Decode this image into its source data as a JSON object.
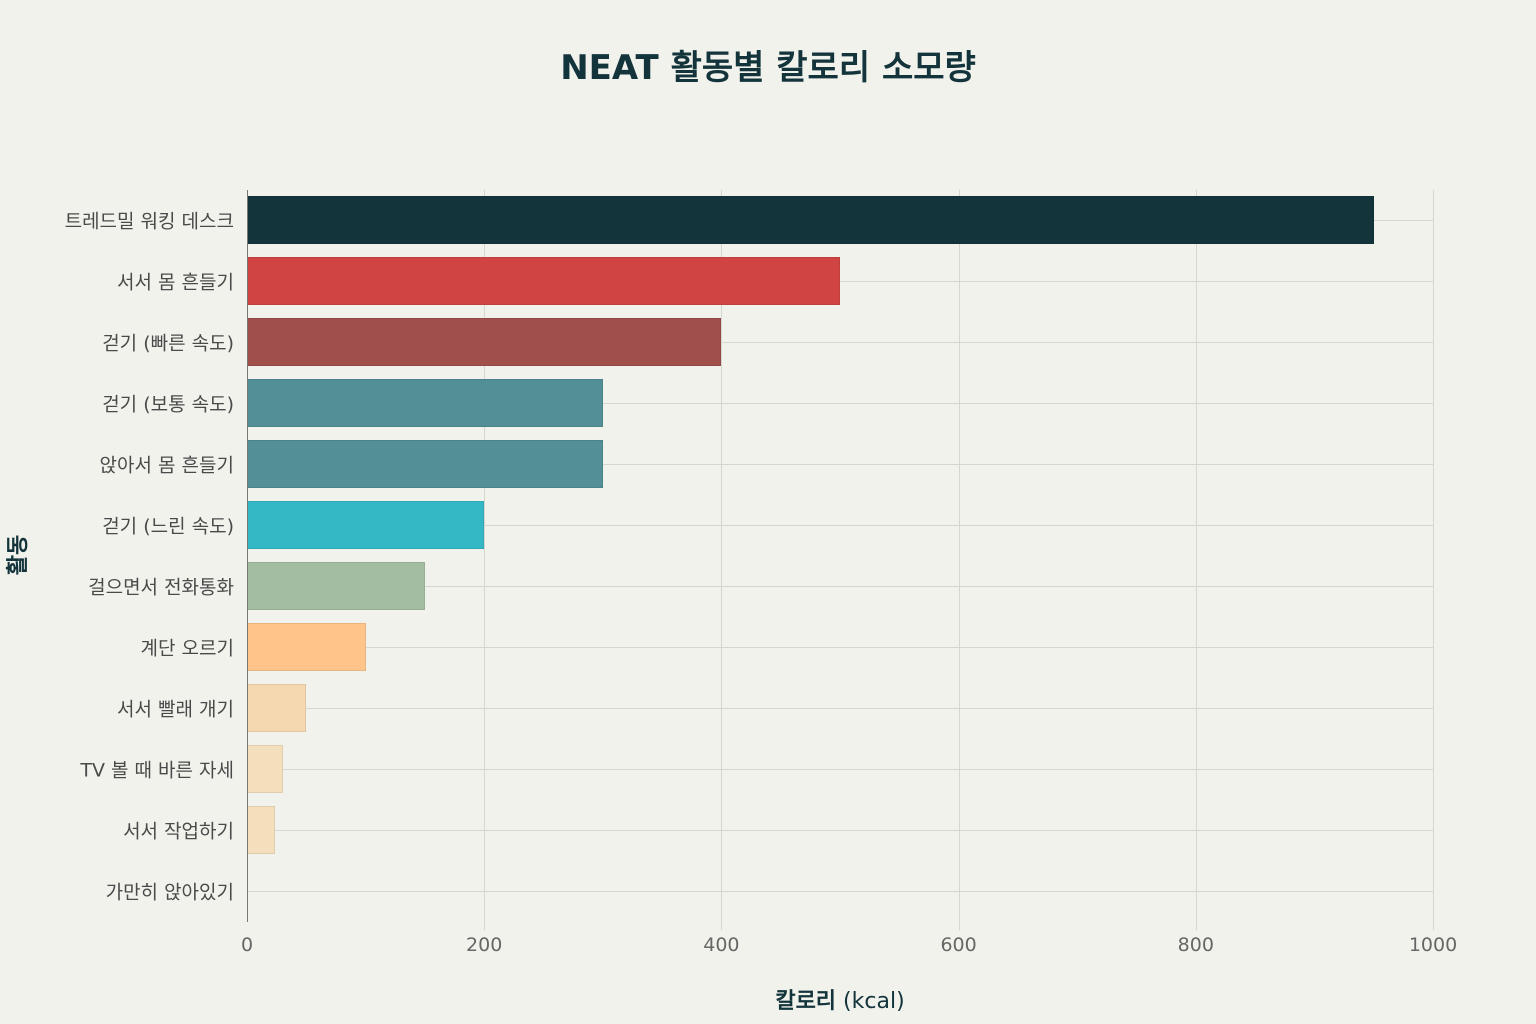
{
  "chart_data": {
    "type": "bar",
    "orientation": "horizontal",
    "title": "NEAT 활동별 칼로리 소모량",
    "xlabel": "칼로리 (kcal)",
    "ylabel": "활동",
    "xlim": [
      0,
      1000
    ],
    "xticks": [
      "0",
      "200",
      "400",
      "600",
      "800",
      "1000"
    ],
    "grid": true,
    "legend": null,
    "categories": [
      "트레드밀 워킹 데스크",
      "서서 몸 흔들기",
      "걷기 (빠른 속도)",
      "걷기 (보통 속도)",
      "앉아서 몸 흔들기",
      "걷기 (느린 속도)",
      "걸으면서 전화통화",
      "계단 오르기",
      "서서 빨래 개기",
      "TV 볼 때 바른 자세",
      "서서 작업하기",
      "가만히 앉아있기"
    ],
    "values": [
      950,
      500,
      400,
      300,
      300,
      200,
      150,
      100,
      50,
      30,
      24,
      0
    ],
    "colors": [
      "#13343b",
      "#d04444",
      "#a04f4c",
      "#528f97",
      "#528f97",
      "#35b8c5",
      "#a2bda2",
      "#fec48a",
      "#f5d7b0",
      "#f4dfbd",
      "#f4dfbd",
      "#f4dfbd"
    ]
  }
}
